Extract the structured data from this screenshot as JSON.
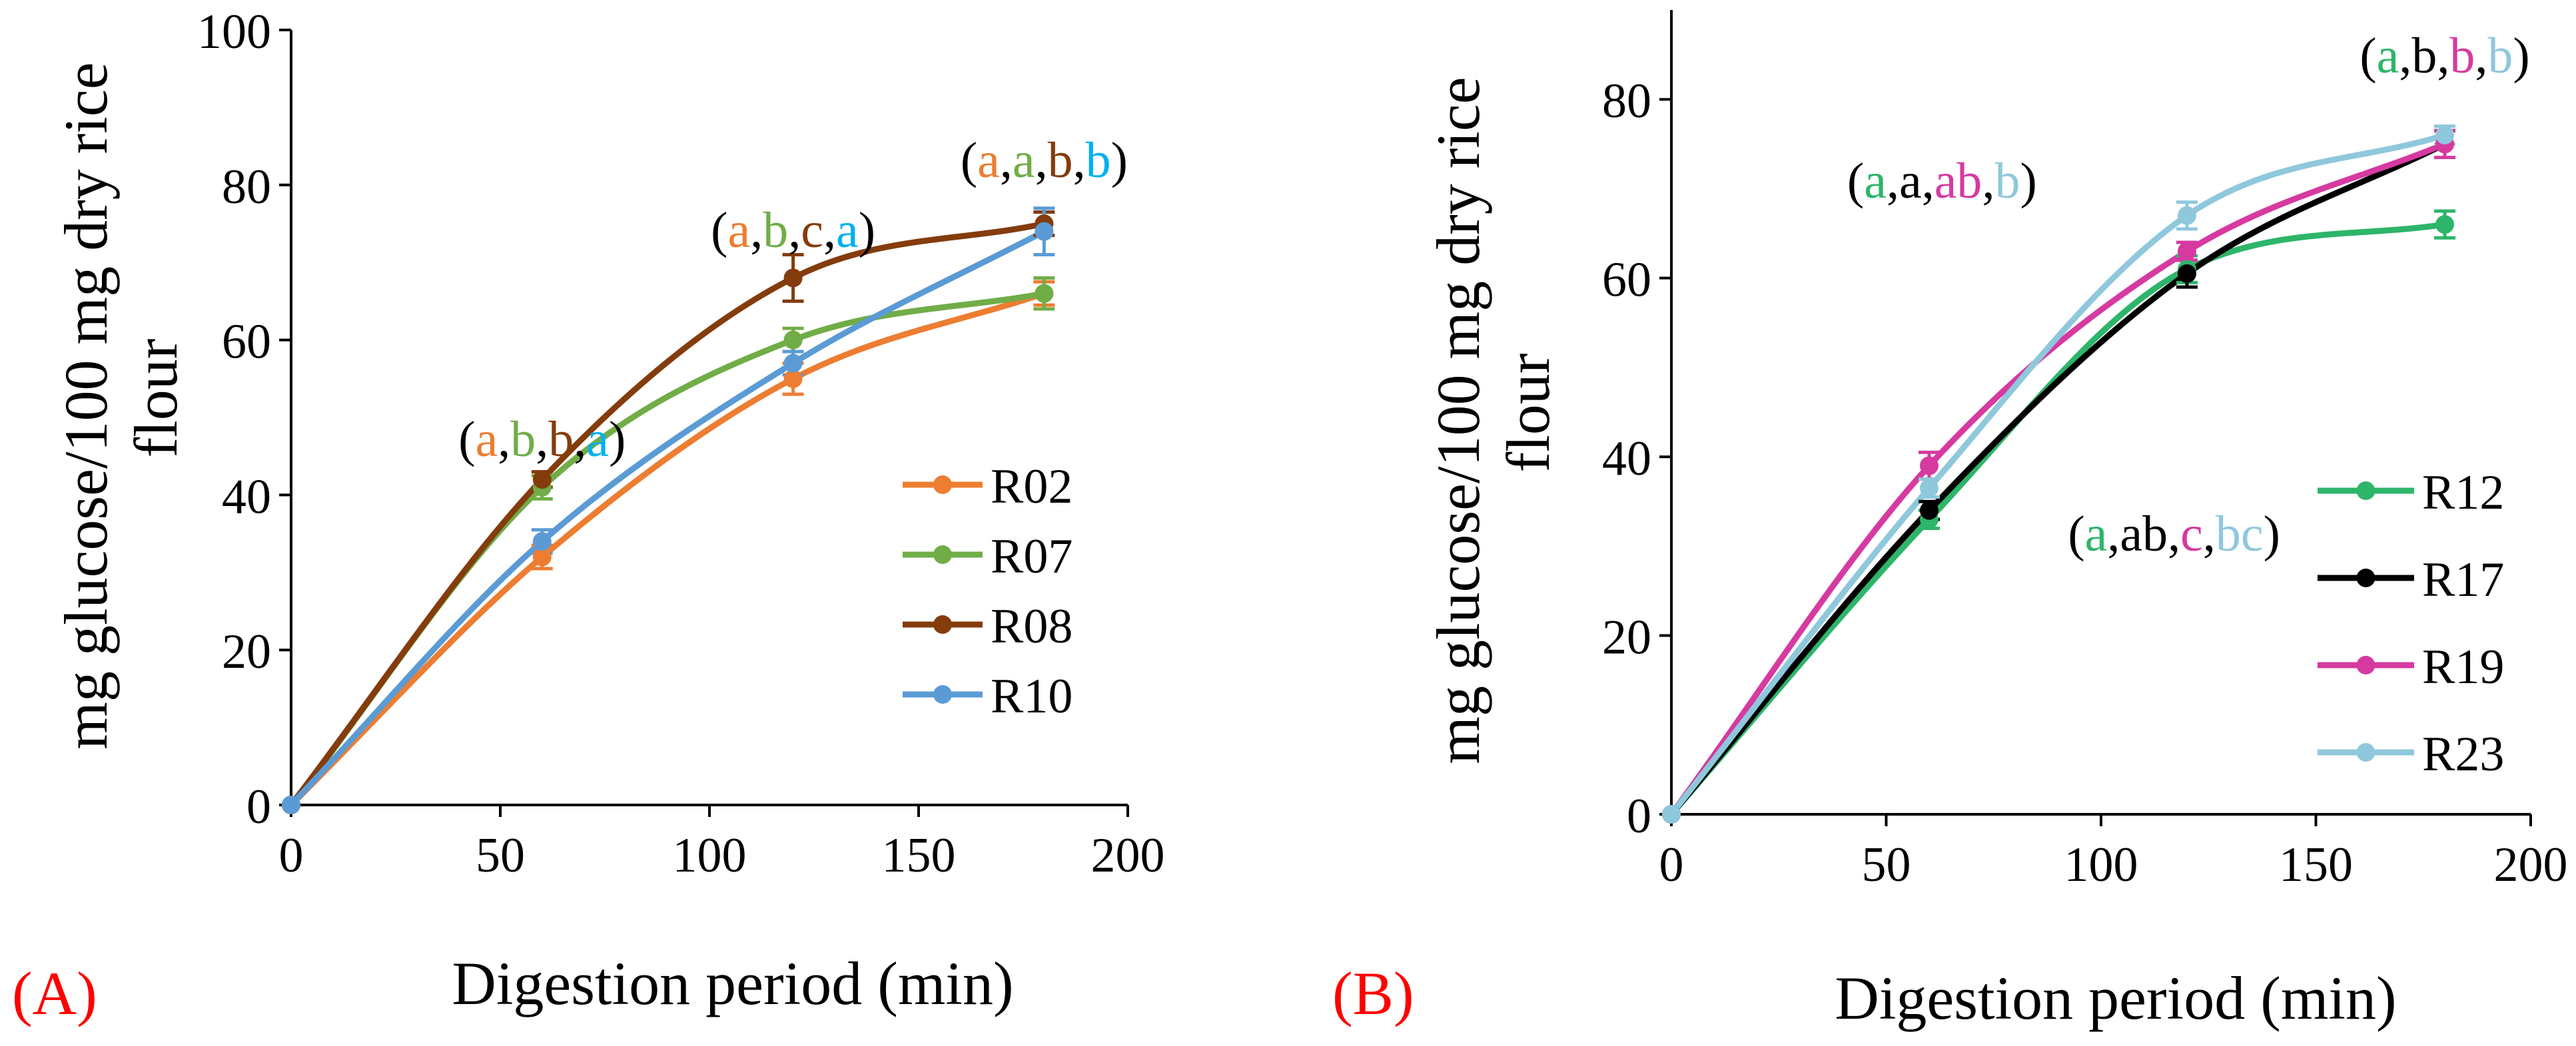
{
  "panels_text": {
    "A": "(A)",
    "B": "(B)"
  },
  "chart_data": [
    {
      "type": "line",
      "panel": "A",
      "xlabel": "Digestion period (min)",
      "ylabel_lines": [
        "mg glucose/100 mg dry rice",
        "flour"
      ],
      "xlim": [
        0,
        200
      ],
      "ylim": [
        0,
        100
      ],
      "xticks": [
        0,
        50,
        100,
        150,
        200
      ],
      "yticks": [
        0,
        20,
        40,
        60,
        80,
        100
      ],
      "grid": false,
      "legend_position": "right",
      "x": [
        0,
        60,
        120,
        180
      ],
      "series": [
        {
          "name": "R02",
          "color": "#ED7D31",
          "values": [
            0,
            32,
            55,
            66
          ],
          "err": [
            0,
            1.5,
            2,
            1.5
          ]
        },
        {
          "name": "R07",
          "color": "#70AD47",
          "values": [
            0,
            41,
            60,
            66
          ],
          "err": [
            0,
            1.5,
            1.5,
            2
          ]
        },
        {
          "name": "R08",
          "color": "#843C0C",
          "values": [
            0,
            42,
            68,
            75
          ],
          "err": [
            0,
            1,
            3,
            1.5
          ]
        },
        {
          "name": "R10",
          "color": "#5B9BD5",
          "values": [
            0,
            34,
            57,
            74
          ],
          "err": [
            0,
            1.5,
            1.5,
            3
          ]
        }
      ],
      "annotations": [
        {
          "x": 60,
          "y": 45,
          "parts": [
            {
              "t": "(",
              "c": "#000000"
            },
            {
              "t": "a",
              "c": "#ED7D31"
            },
            {
              "t": ",",
              "c": "#000000"
            },
            {
              "t": "b",
              "c": "#70AD47"
            },
            {
              "t": ",",
              "c": "#000000"
            },
            {
              "t": "b",
              "c": "#843C0C"
            },
            {
              "t": ",",
              "c": "#000000"
            },
            {
              "t": "a",
              "c": "#00B0F0"
            },
            {
              "t": ")",
              "c": "#000000"
            }
          ]
        },
        {
          "x": 120,
          "y": 72,
          "parts": [
            {
              "t": "(",
              "c": "#000000"
            },
            {
              "t": "a",
              "c": "#ED7D31"
            },
            {
              "t": ",",
              "c": "#000000"
            },
            {
              "t": "b",
              "c": "#70AD47"
            },
            {
              "t": ",",
              "c": "#000000"
            },
            {
              "t": "c",
              "c": "#843C0C"
            },
            {
              "t": ",",
              "c": "#000000"
            },
            {
              "t": "a",
              "c": "#00B0F0"
            },
            {
              "t": ")",
              "c": "#000000"
            }
          ]
        },
        {
          "x": 180,
          "y": 81,
          "parts": [
            {
              "t": "(",
              "c": "#000000"
            },
            {
              "t": "a",
              "c": "#ED7D31"
            },
            {
              "t": ",",
              "c": "#000000"
            },
            {
              "t": "a",
              "c": "#70AD47"
            },
            {
              "t": ",",
              "c": "#000000"
            },
            {
              "t": "b",
              "c": "#843C0C"
            },
            {
              "t": ",",
              "c": "#000000"
            },
            {
              "t": "b",
              "c": "#00B0F0"
            },
            {
              "t": ")",
              "c": "#000000"
            }
          ]
        }
      ]
    },
    {
      "type": "line",
      "panel": "B",
      "xlabel": "Digestion period (min)",
      "ylabel_lines": [
        "mg glucose/100 mg dry rice",
        "flour"
      ],
      "xlim": [
        0,
        200
      ],
      "ylim": [
        0,
        90
      ],
      "xticks": [
        0,
        50,
        100,
        150,
        200
      ],
      "yticks": [
        0,
        20,
        40,
        60,
        80
      ],
      "grid": false,
      "legend_position": "right",
      "x": [
        0,
        60,
        120,
        180
      ],
      "series": [
        {
          "name": "R12",
          "color": "#2DB56A",
          "values": [
            0,
            33,
            61,
            66
          ],
          "err": [
            0,
            1,
            1.5,
            1.5
          ]
        },
        {
          "name": "R17",
          "color": "#000000",
          "values": [
            0,
            34,
            60.5,
            75
          ],
          "err": [
            0,
            1,
            1.5,
            1.5
          ]
        },
        {
          "name": "R19",
          "color": "#D63AA0",
          "values": [
            0,
            39,
            63,
            75
          ],
          "err": [
            0,
            1.5,
            1,
            1.5
          ]
        },
        {
          "name": "R23",
          "color": "#8FC8DC",
          "values": [
            0,
            36.5,
            67,
            76
          ],
          "err": [
            0,
            1,
            1.5,
            1
          ]
        }
      ],
      "annotations": [
        {
          "x": 63,
          "y": 69,
          "parts": [
            {
              "t": "(",
              "c": "#000000"
            },
            {
              "t": "a",
              "c": "#2DB56A"
            },
            {
              "t": ",",
              "c": "#000000"
            },
            {
              "t": "a",
              "c": "#000000"
            },
            {
              "t": ",",
              "c": "#000000"
            },
            {
              "t": "ab",
              "c": "#D63AA0"
            },
            {
              "t": ",",
              "c": "#000000"
            },
            {
              "t": "b",
              "c": "#8FC8DC"
            },
            {
              "t": ")",
              "c": "#000000"
            }
          ]
        },
        {
          "x": 117,
          "y": 29.5,
          "parts": [
            {
              "t": "(",
              "c": "#000000"
            },
            {
              "t": "a",
              "c": "#2DB56A"
            },
            {
              "t": ",",
              "c": "#000000"
            },
            {
              "t": "ab",
              "c": "#000000"
            },
            {
              "t": ",",
              "c": "#000000"
            },
            {
              "t": "c",
              "c": "#D63AA0"
            },
            {
              "t": ",",
              "c": "#000000"
            },
            {
              "t": "bc",
              "c": "#8FC8DC"
            },
            {
              "t": ")",
              "c": "#000000"
            }
          ]
        },
        {
          "x": 180,
          "y": 83,
          "parts": [
            {
              "t": "(",
              "c": "#000000"
            },
            {
              "t": "a",
              "c": "#2DB56A"
            },
            {
              "t": ",",
              "c": "#000000"
            },
            {
              "t": "b",
              "c": "#000000"
            },
            {
              "t": ",",
              "c": "#000000"
            },
            {
              "t": "b",
              "c": "#D63AA0"
            },
            {
              "t": ",",
              "c": "#000000"
            },
            {
              "t": "b",
              "c": "#8FC8DC"
            },
            {
              "t": ")",
              "c": "#000000"
            }
          ]
        }
      ]
    }
  ]
}
